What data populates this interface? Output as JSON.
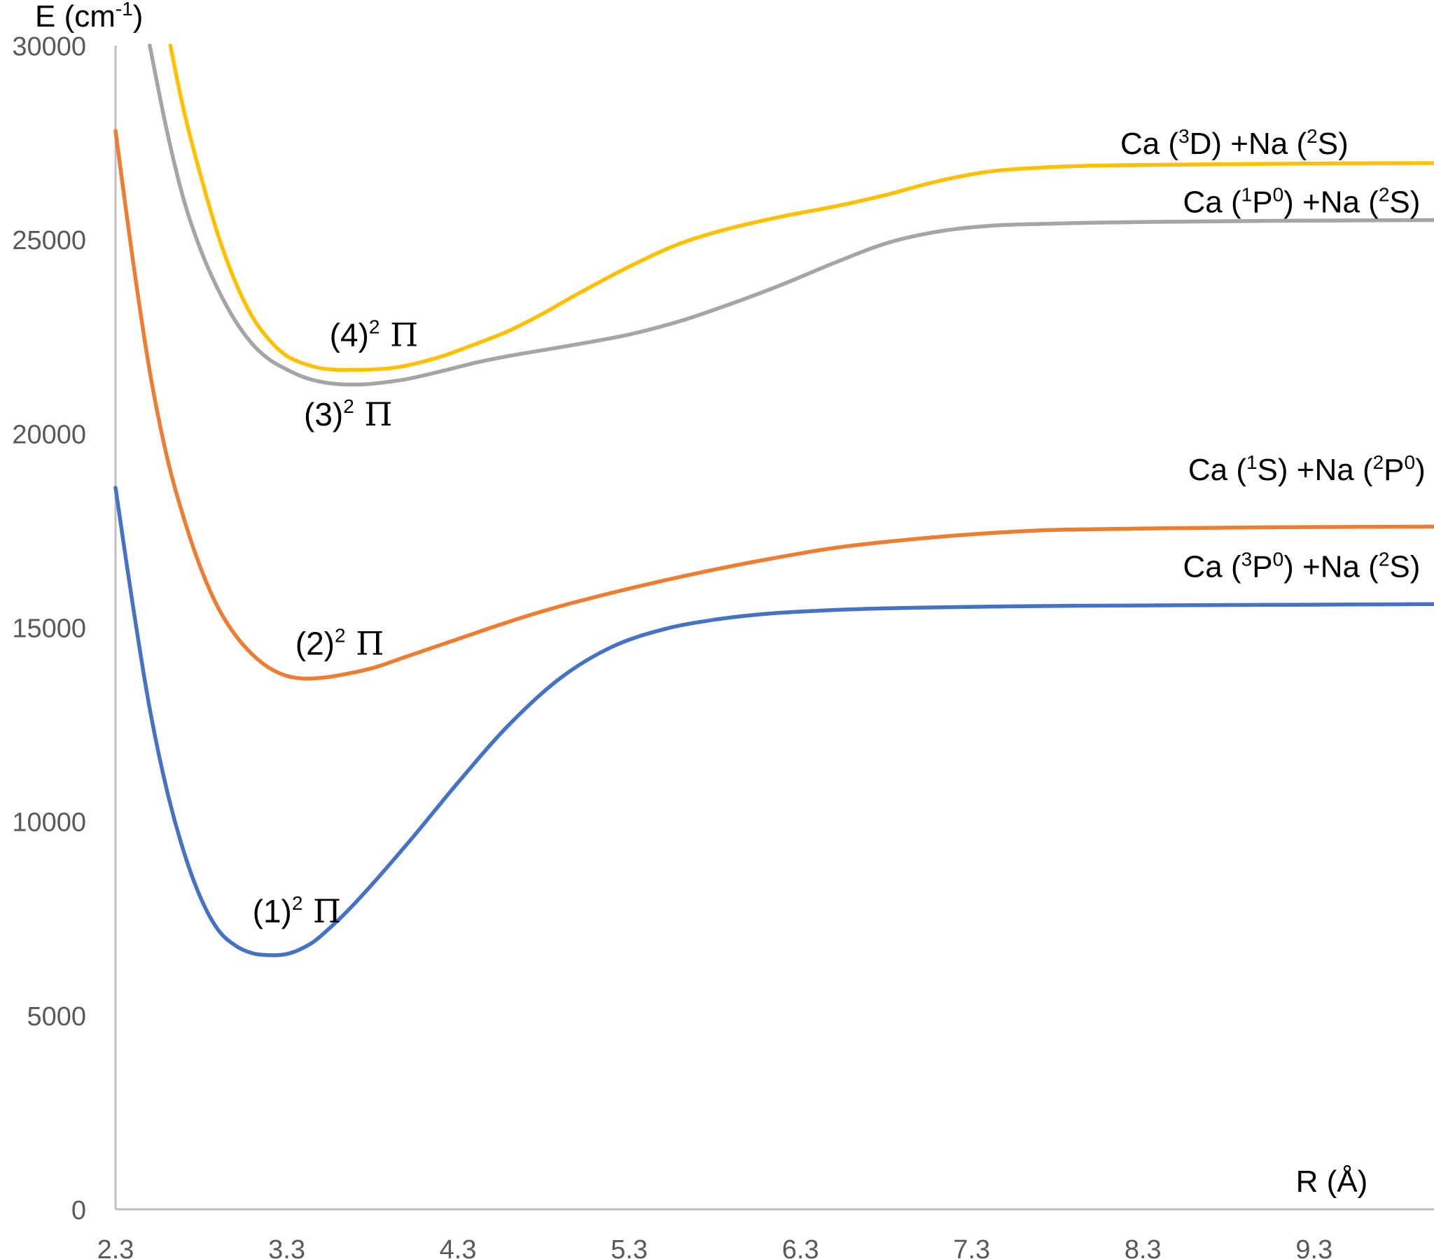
{
  "chart_data": {
    "type": "line",
    "title": "",
    "xlabel": "R (Å)",
    "ylabel_parts": {
      "base": "E (cm",
      "sup": "-1",
      "close": ")"
    },
    "xlim": [
      2.3,
      10.0
    ],
    "ylim": [
      0,
      30000
    ],
    "x_ticks": [
      "2.3",
      "3.3",
      "4.3",
      "5.3",
      "6.3",
      "7.3",
      "8.3",
      "9.3"
    ],
    "x_tick_values": [
      2.3,
      3.3,
      4.3,
      5.3,
      6.3,
      7.3,
      8.3,
      9.3
    ],
    "y_ticks": [
      "0",
      "5000",
      "10000",
      "15000",
      "20000",
      "25000",
      "30000"
    ],
    "y_tick_values": [
      0,
      5000,
      10000,
      15000,
      20000,
      25000,
      30000
    ],
    "grid": false,
    "series": [
      {
        "name": "(1)2Π",
        "label_parts": {
          "pre": "(1)",
          "sup": "2",
          "pi": " Π"
        },
        "label_anchor": {
          "x": 3.1,
          "y": 7400
        },
        "asymptote_parts": [
          "Ca (",
          "3",
          "P",
          "0",
          ") +Na (",
          "2",
          "S)"
        ],
        "asymptote_anchor": {
          "x": 9.92,
          "y": 16300
        },
        "color": "#4472c4",
        "x": [
          2.3,
          2.4,
          2.5,
          2.6,
          2.7,
          2.8,
          2.9,
          3.0,
          3.1,
          3.2,
          3.3,
          3.4,
          3.5,
          3.7,
          4.0,
          4.3,
          4.6,
          4.9,
          5.2,
          5.5,
          5.8,
          6.1,
          6.4,
          6.7,
          7.0,
          7.3,
          7.7,
          8.0,
          8.5,
          9.0,
          9.5,
          10.0
        ],
        "y": [
          18600,
          15600,
          12900,
          10800,
          9200,
          8000,
          7200,
          6800,
          6600,
          6550,
          6580,
          6750,
          7050,
          7900,
          9400,
          11000,
          12500,
          13700,
          14500,
          14950,
          15200,
          15350,
          15430,
          15480,
          15510,
          15530,
          15550,
          15560,
          15570,
          15580,
          15590,
          15600
        ]
      },
      {
        "name": "(2)2Π",
        "label_parts": {
          "pre": "(2)",
          "sup": "2",
          "pi": " Π"
        },
        "label_anchor": {
          "x": 3.35,
          "y": 14300
        },
        "asymptote_parts": [
          "Ca (",
          "1",
          "S) +Na (",
          "2",
          "P",
          "0",
          ")"
        ],
        "asymptote_anchor": {
          "x": 9.95,
          "y": 18800
        },
        "color": "#ed7d31",
        "x": [
          2.3,
          2.4,
          2.5,
          2.6,
          2.7,
          2.8,
          2.9,
          3.0,
          3.1,
          3.2,
          3.3,
          3.4,
          3.5,
          3.6,
          3.8,
          4.0,
          4.3,
          4.6,
          4.9,
          5.3,
          5.7,
          6.1,
          6.5,
          6.9,
          7.3,
          7.7,
          8.0,
          8.5,
          9.0,
          9.5,
          10.0
        ],
        "y": [
          27800,
          24500,
          21600,
          19400,
          17800,
          16500,
          15500,
          14800,
          14300,
          13950,
          13750,
          13680,
          13700,
          13760,
          13950,
          14250,
          14700,
          15150,
          15550,
          16000,
          16400,
          16750,
          17050,
          17250,
          17400,
          17500,
          17530,
          17560,
          17580,
          17590,
          17600
        ]
      },
      {
        "name": "(3)2Π",
        "label_parts": {
          "pre": "(3)",
          "sup": "2",
          "pi": " Π"
        },
        "label_anchor": {
          "x": 3.4,
          "y": 20200
        },
        "asymptote_parts": [
          "Ca (",
          "1",
          "P",
          "0",
          ") +Na (",
          "2",
          "S)"
        ],
        "asymptote_anchor": {
          "x": 9.92,
          "y": 25700
        },
        "color": "#a5a5a5",
        "x": [
          2.5,
          2.6,
          2.7,
          2.8,
          2.9,
          3.0,
          3.1,
          3.2,
          3.3,
          3.4,
          3.5,
          3.6,
          3.7,
          3.8,
          4.0,
          4.2,
          4.4,
          4.6,
          4.8,
          5.0,
          5.3,
          5.6,
          5.9,
          6.2,
          6.5,
          6.8,
          7.1,
          7.4,
          7.7,
          8.0,
          8.5,
          9.0,
          9.5,
          10.0
        ],
        "y": [
          30000,
          27800,
          26000,
          24700,
          23700,
          22900,
          22300,
          21900,
          21650,
          21450,
          21330,
          21270,
          21260,
          21280,
          21400,
          21600,
          21820,
          22000,
          22150,
          22300,
          22550,
          22900,
          23350,
          23850,
          24400,
          24900,
          25200,
          25350,
          25400,
          25430,
          25460,
          25480,
          25490,
          25500
        ]
      },
      {
        "name": "(4)2Π",
        "label_parts": {
          "pre": "(4)",
          "sup": "2",
          "pi": " Π"
        },
        "label_anchor": {
          "x": 3.55,
          "y": 22250
        },
        "asymptote_parts": [
          "Ca (",
          "3",
          "D) +Na (",
          "2",
          "S)"
        ],
        "asymptote_anchor": {
          "x": 9.5,
          "y": 27200
        },
        "color": "#ffc000",
        "x": [
          2.62,
          2.7,
          2.8,
          2.9,
          3.0,
          3.1,
          3.2,
          3.3,
          3.4,
          3.5,
          3.6,
          3.7,
          3.8,
          3.9,
          4.0,
          4.2,
          4.4,
          4.6,
          4.8,
          5.0,
          5.3,
          5.6,
          5.9,
          6.2,
          6.5,
          6.8,
          7.1,
          7.4,
          7.7,
          8.0,
          8.5,
          9.0,
          9.5,
          10.0
        ],
        "y": [
          30000,
          28300,
          26600,
          25100,
          23900,
          23000,
          22400,
          22000,
          21800,
          21680,
          21640,
          21640,
          21650,
          21680,
          21750,
          21980,
          22300,
          22650,
          23100,
          23600,
          24300,
          24900,
          25300,
          25600,
          25850,
          26150,
          26500,
          26750,
          26850,
          26900,
          26930,
          26950,
          26960,
          26970
        ]
      }
    ]
  }
}
